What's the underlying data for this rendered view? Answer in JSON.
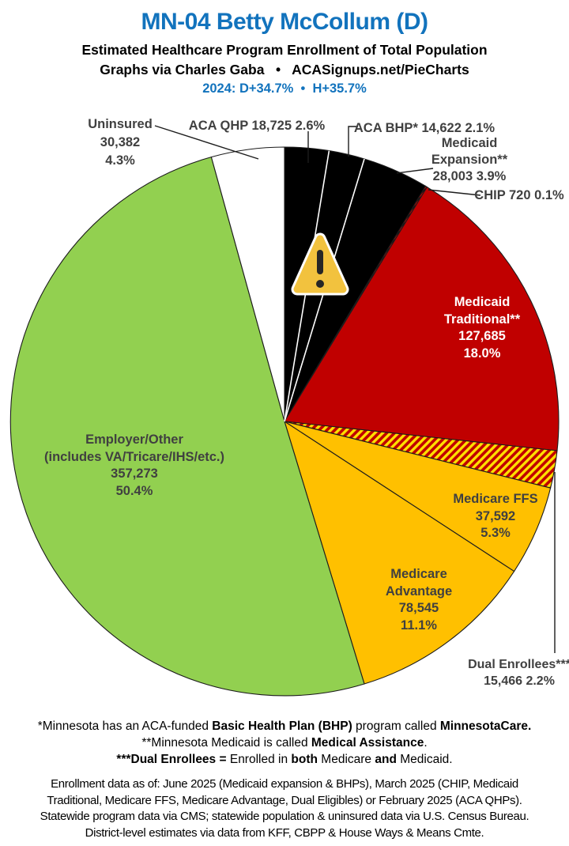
{
  "header": {
    "title": "MN-04 Betty McCollum (D)",
    "subtitle1": "Estimated Healthcare Program Enrollment of Total Population",
    "subtitle2": "Graphs via Charles Gaba   •   ACASignups.net/PieCharts",
    "subtitle3": "2024: D+34.7%  •  H+35.7%",
    "accent_color": "#1273bd"
  },
  "chart_data": {
    "type": "pie",
    "title": "Estimated Healthcare Program Enrollment of Total Population",
    "units": "people",
    "direction": "clockwise",
    "start_angle_deg": 0,
    "legend": "none (direct labels and callouts)",
    "slices": [
      {
        "id": "aca_qhp",
        "label": "ACA QHP",
        "value": 18725,
        "display_value": "18,725",
        "pct": 2.6,
        "display_pct": "2.6%",
        "color": "#000000"
      },
      {
        "id": "aca_bhp",
        "label": "ACA BHP*",
        "value": 14622,
        "display_value": "14,622",
        "pct": 2.1,
        "display_pct": "2.1%",
        "color": "#000000"
      },
      {
        "id": "medicaid_expansion",
        "label": "Medicaid Expansion**",
        "value": 28003,
        "display_value": "28,003",
        "pct": 3.9,
        "display_pct": "3.9%",
        "color": "#000000"
      },
      {
        "id": "chip",
        "label": "CHIP",
        "value": 720,
        "display_value": "720",
        "pct": 0.1,
        "display_pct": "0.1%",
        "color": "#C00000",
        "hatch": [
          "#C00000",
          "#111111"
        ],
        "hatch_size": 3
      },
      {
        "id": "medicaid_traditional",
        "label": "Medicaid Traditional**",
        "value": 127685,
        "display_value": "127,685",
        "pct": 18.0,
        "display_pct": "18.0%",
        "color": "#C00000"
      },
      {
        "id": "dual",
        "label": "Dual Enrollees***",
        "value": 15466,
        "display_value": "15,466",
        "pct": 2.2,
        "display_pct": "2.2%",
        "color": "#C00000",
        "hatch": [
          "#C00000",
          "#FFE000"
        ],
        "hatch_size": 7
      },
      {
        "id": "medicare_ffs",
        "label": "Medicare FFS",
        "value": 37592,
        "display_value": "37,592",
        "pct": 5.3,
        "display_pct": "5.3%",
        "color": "#FFC000"
      },
      {
        "id": "medicare_advantage",
        "label": "Medicare Advantage",
        "value": 78545,
        "display_value": "78,545",
        "pct": 11.1,
        "display_pct": "11.1%",
        "color": "#FFC000"
      },
      {
        "id": "employer",
        "label": "Employer/Other (includes VA/Tricare/IHS/etc.)",
        "value": 357273,
        "display_value": "357,273",
        "pct": 50.4,
        "display_pct": "50.4%",
        "color": "#92D050"
      },
      {
        "id": "uninsured",
        "label": "Uninsured",
        "value": 30382,
        "display_value": "30,382",
        "pct": 4.3,
        "display_pct": "4.3%",
        "color": "#FFFFFF"
      }
    ]
  },
  "callouts": {
    "uninsured": [
      "Uninsured",
      "30,382",
      "4.3%"
    ],
    "aca_qhp": [
      "ACA QHP 18,725 2.6%"
    ],
    "aca_bhp": [
      "ACA BHP* 14,622 2.1%"
    ],
    "medicaid_expansion": [
      "Medicaid",
      "Expansion**",
      "28,003 3.9%"
    ],
    "chip": [
      "CHIP 720 0.1%"
    ],
    "medicaid_traditional": [
      "Medicaid",
      "Traditional**",
      "127,685",
      "18.0%"
    ],
    "medicare_ffs": [
      "Medicare FFS",
      "37,592",
      "5.3%"
    ],
    "medicare_advantage": [
      "Medicare",
      "Advantage",
      "78,545",
      "11.1%"
    ],
    "employer": [
      "Employer/Other",
      "(includes VA/Tricare/IHS/etc.)",
      "357,273",
      "50.4%"
    ],
    "dual": [
      "Dual Enrollees***",
      "15,466 2.2%"
    ]
  },
  "warning_icon": {
    "name": "warning-triangle-icon",
    "glyph": "exclamation triangle",
    "fill": "#F2C23E",
    "border": "#FFFFFF",
    "mark": "#262626"
  },
  "footnotes": {
    "lines": [
      [
        {
          "t": "*Minnesota has an ACA-funded "
        },
        {
          "t": "Basic Health Plan (BHP)",
          "b": true
        },
        {
          "t": " program called "
        },
        {
          "t": "MinnesotaCare.",
          "b": true
        }
      ],
      [
        {
          "t": "**Minnesota Medicaid is called "
        },
        {
          "t": "Medical Assistance",
          "b": true
        },
        {
          "t": "."
        }
      ],
      [
        {
          "t": "***Dual Enrollees =",
          "b": true
        },
        {
          "t": " Enrolled in "
        },
        {
          "t": "both",
          "b": true
        },
        {
          "t": " Medicare "
        },
        {
          "t": "and",
          "b": true
        },
        {
          "t": " Medicaid."
        }
      ]
    ]
  },
  "source_note": {
    "lines": [
      "Enrollment data as of: June 2025 (Medicaid expansion & BHPs), March 2025 (CHIP, Medicaid",
      "Traditional, Medicare FFS, Medicare Advantage, Dual Eligibles) or February 2025 (ACA QHPs).",
      "Statewide program data via CMS; statewide population & uninsured data via U.S. Census Bureau.",
      "District-level estimates via data from KFF, CBPP & House Ways & Means Cmte."
    ]
  }
}
